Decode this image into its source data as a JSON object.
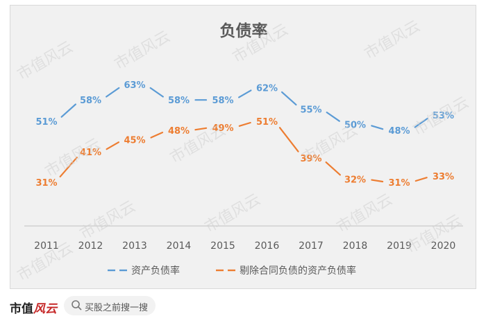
{
  "chart_data": {
    "type": "line",
    "title": "负债率",
    "categories": [
      "2011",
      "2012",
      "2013",
      "2014",
      "2015",
      "2016",
      "2017",
      "2018",
      "2019",
      "2020"
    ],
    "series": [
      {
        "name": "资产负债率",
        "values": [
          51,
          58,
          63,
          58,
          58,
          62,
          55,
          50,
          48,
          53
        ],
        "labels": [
          "51%",
          "58%",
          "63%",
          "58%",
          "58%",
          "62%",
          "55%",
          "50%",
          "48%",
          "53%"
        ],
        "color": "#5b9bd5"
      },
      {
        "name": "剔除合同负债的资产负债率",
        "values": [
          31,
          41,
          45,
          48,
          49,
          51,
          39,
          32,
          31,
          33
        ],
        "labels": [
          "31%",
          "41%",
          "45%",
          "48%",
          "49%",
          "51%",
          "39%",
          "32%",
          "31%",
          "33%"
        ],
        "color": "#ed7d31"
      }
    ],
    "legend_position": "bottom",
    "grid": false
  },
  "watermark": "市值风云",
  "footer": {
    "brand_text": "市值",
    "brand_logo_text": "风云",
    "search_placeholder": "买股之前搜一搜",
    "search_icon": "search-icon"
  }
}
